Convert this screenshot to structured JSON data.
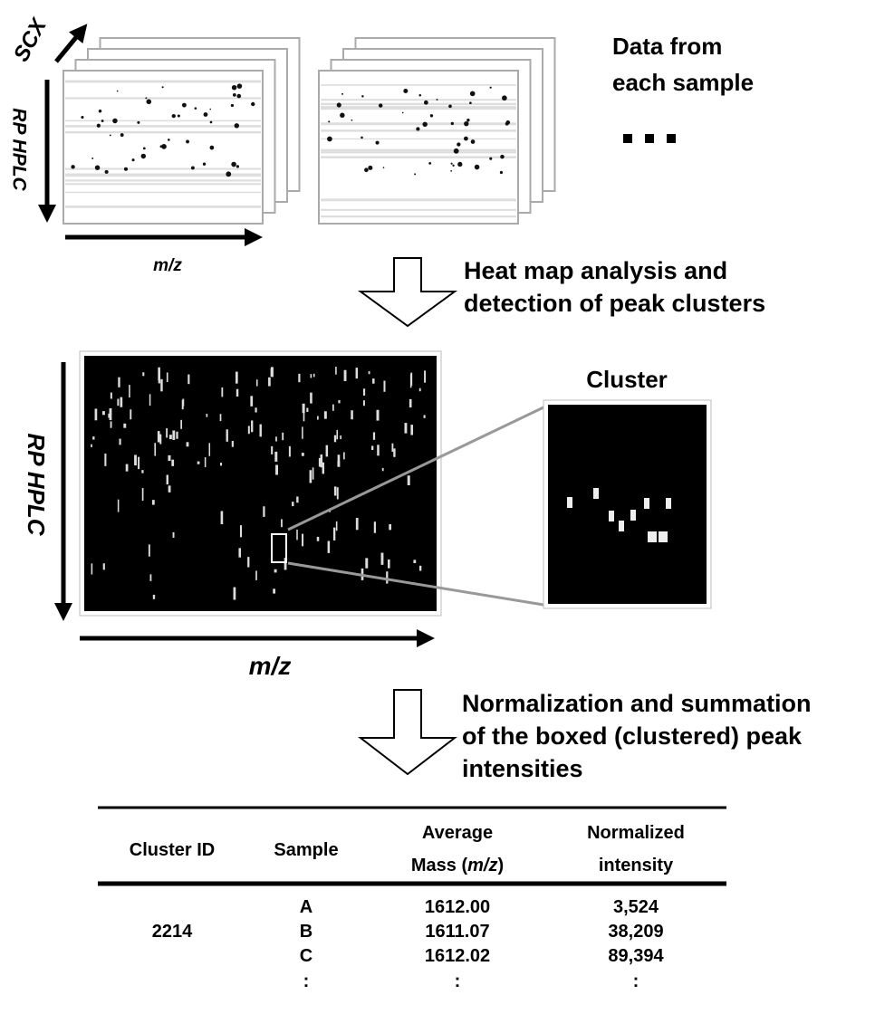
{
  "top_panel": {
    "stack_axis": "SCX",
    "y_axis": "RP HPLC",
    "x_axis": "m/z",
    "caption": [
      "Data from",
      "each sample"
    ]
  },
  "step1": {
    "lines": [
      "Heat map analysis and",
      "detection of peak clusters"
    ]
  },
  "heatmap": {
    "y_axis": "RP HPLC",
    "x_axis": "m/z",
    "inset_title": "Cluster"
  },
  "step2": {
    "lines": [
      "Normalization and summation",
      "of the boxed (clustered) peak",
      "intensities"
    ]
  },
  "table": {
    "headers": {
      "cluster_id": "Cluster ID",
      "sample": "Sample",
      "mass_line1": "Average",
      "mass_line2_pre": "Mass (",
      "mass_line2_italic": "m/z",
      "mass_line2_post": ")",
      "intensity_line1": "Normalized",
      "intensity_line2": "intensity"
    },
    "cluster_id": "2214",
    "rows": [
      {
        "sample": "A",
        "mass": "1612.00",
        "intensity": "3,524"
      },
      {
        "sample": "B",
        "mass": "1611.07",
        "intensity": "38,209"
      },
      {
        "sample": "C",
        "mass": "1612.02",
        "intensity": "89,394"
      }
    ],
    "continuation": [
      ":",
      ":",
      ":"
    ]
  }
}
